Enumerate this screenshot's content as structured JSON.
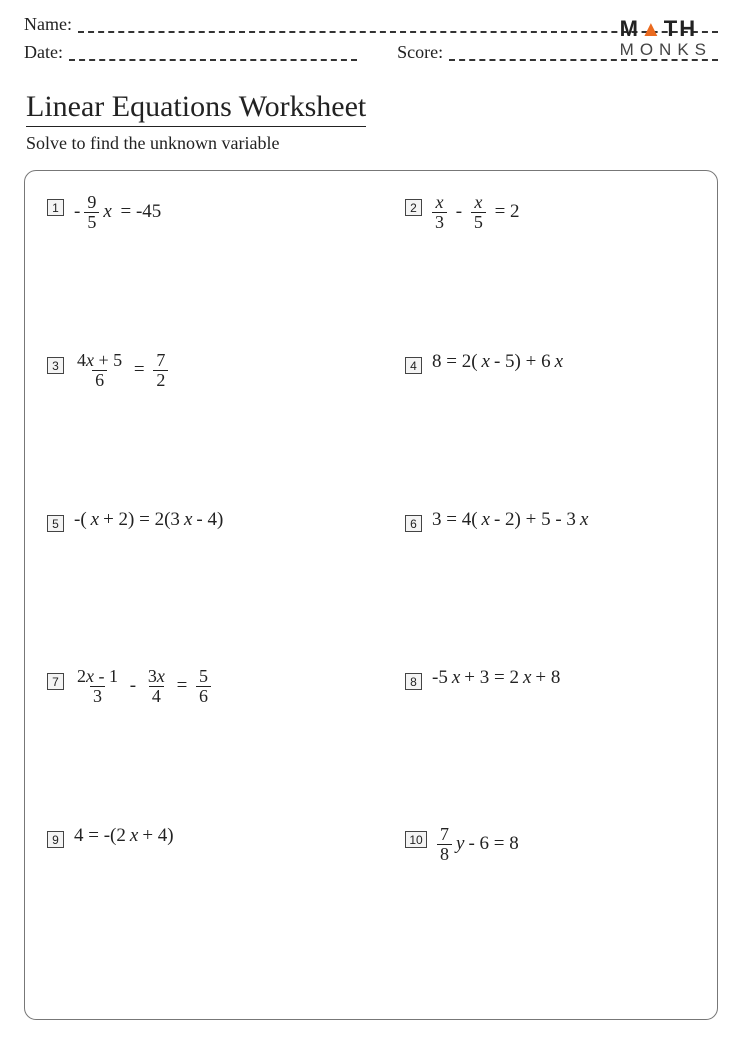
{
  "header": {
    "name_label": "Name:",
    "date_label": "Date:",
    "score_label": "Score:"
  },
  "logo": {
    "line1_pre": "M",
    "line1_tri": "▲",
    "line1_post": "TH",
    "line2": "MONKS",
    "triangle_color": "#ea6a1f"
  },
  "title": "Linear Equations Worksheet",
  "subtitle": "Solve to find the unknown variable",
  "problems": [
    {
      "n": "1",
      "html": "-<span class='frac'><span class='fn'>9</span><span class='fd'>5</span></span><span class='var'>x</span>&nbsp;= -45"
    },
    {
      "n": "2",
      "html": "<span class='frac'><span class='fn var'>x</span><span class='fd'>3</span></span>&nbsp;-&nbsp;<span class='frac'><span class='fn var'>x</span><span class='fd'>5</span></span>&nbsp;= 2"
    },
    {
      "n": "3",
      "html": "<span class='frac'><span class='fn'>4<span class=\"var\">x</span> + 5</span><span class='fd'>6</span></span>&nbsp;=&nbsp;<span class='frac'><span class='fn'>7</span><span class='fd'>2</span></span>"
    },
    {
      "n": "4",
      "html": "8 = 2(<span class='var'>x</span> - 5) + 6<span class='var'>x</span>"
    },
    {
      "n": "5",
      "html": "-(<span class='var'>x</span> + 2) = 2(3<span class='var'>x</span> - 4)"
    },
    {
      "n": "6",
      "html": "3 = 4(<span class='var'>x</span> - 2) + 5 - 3<span class='var'>x</span>"
    },
    {
      "n": "7",
      "html": "<span class='frac'><span class='fn'>2<span class=\"var\">x</span> - 1</span><span class='fd'>3</span></span>&nbsp;-&nbsp;<span class='frac'><span class='fn'>3<span class=\"var\">x</span></span><span class='fd'>4</span></span>&nbsp;=&nbsp;<span class='frac'><span class='fn'>5</span><span class='fd'>6</span></span>"
    },
    {
      "n": "8",
      "html": "-5<span class='var'>x</span> + 3 = 2<span class='var'>x</span> + 8"
    },
    {
      "n": "9",
      "html": "4 = -(2<span class='var'>x</span> + 4)"
    },
    {
      "n": "10",
      "html": "<span class='frac'><span class='fn'>7</span><span class='fd'>8</span></span><span class='var'>y</span> - 6 = 8"
    }
  ],
  "styling": {
    "page_bg": "#ffffff",
    "text_color": "#222222",
    "border_color": "#777777",
    "badge_bg": "#f4f4f4",
    "dash_color": "#333333",
    "title_fontsize": 30,
    "subtitle_fontsize": 18,
    "equation_fontsize": 19,
    "box_radius": 12
  }
}
